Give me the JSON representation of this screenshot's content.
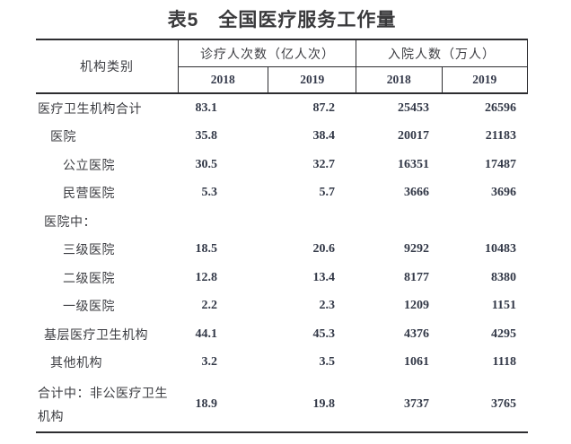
{
  "title": "表5　全国医疗服务工作量",
  "colors": {
    "background": "#ffffff",
    "line": "#2d2d30",
    "cjk_text": "#3c3d42",
    "number_text": "#323847",
    "title_text": "#3a3a3c"
  },
  "table": {
    "category_header": "机构类别",
    "groups": [
      {
        "label": "诊疗人次数（亿人次）",
        "years": [
          "2018",
          "2019"
        ]
      },
      {
        "label": "入院人数（万人）",
        "years": [
          "2018",
          "2019"
        ]
      }
    ],
    "rows": [
      {
        "label": "医疗卫生机构合计",
        "indent": 0,
        "tall": false,
        "values": [
          "83.1",
          "87.2",
          "25453",
          "26596"
        ]
      },
      {
        "label": "医院",
        "indent": 14,
        "tall": false,
        "values": [
          "35.8",
          "38.4",
          "20017",
          "21183"
        ]
      },
      {
        "label": "公立医院",
        "indent": 28,
        "tall": false,
        "values": [
          "30.5",
          "32.7",
          "16351",
          "17487"
        ]
      },
      {
        "label": "民营医院",
        "indent": 28,
        "tall": false,
        "values": [
          "5.3",
          "5.7",
          "3666",
          "3696"
        ]
      },
      {
        "label": "医院中：",
        "indent": 7,
        "tall": false,
        "values": [
          "",
          "",
          "",
          ""
        ]
      },
      {
        "label": "三级医院",
        "indent": 28,
        "tall": false,
        "values": [
          "18.5",
          "20.6",
          "9292",
          "10483"
        ]
      },
      {
        "label": "二级医院",
        "indent": 28,
        "tall": false,
        "values": [
          "12.8",
          "13.4",
          "8177",
          "8380"
        ]
      },
      {
        "label": "一级医院",
        "indent": 28,
        "tall": false,
        "values": [
          "2.2",
          "2.3",
          "1209",
          "1151"
        ]
      },
      {
        "label": "基层医疗卫生机构",
        "indent": 7,
        "tall": false,
        "values": [
          "44.1",
          "45.3",
          "4376",
          "4295"
        ]
      },
      {
        "label": "其他机构",
        "indent": 14,
        "tall": false,
        "values": [
          "3.2",
          "3.5",
          "1061",
          "1118"
        ]
      },
      {
        "label": "合计中：非公医疗卫生机构",
        "indent": 0,
        "tall": true,
        "values": [
          "18.9",
          "19.8",
          "3737",
          "3765"
        ]
      }
    ]
  }
}
